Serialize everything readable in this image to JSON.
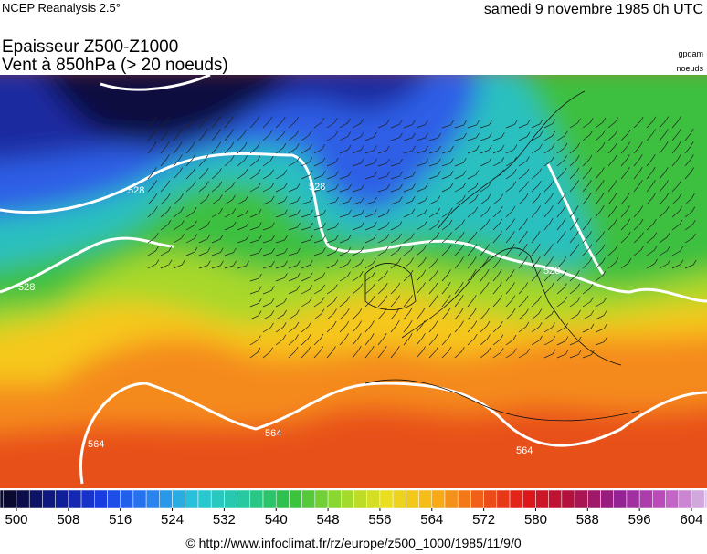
{
  "header": {
    "source": "NCEP Reanalysis 2.5°",
    "date": "samedi 9 novembre 1985 0h UTC",
    "title": "Epaisseur Z500-Z1000",
    "subtitle": "Vent à 850hPa (> 20 noeuds)",
    "unit_field": "gpdam",
    "unit_wind": "noeuds"
  },
  "contour_labels": [
    "528",
    "528",
    "528",
    "528",
    "564",
    "564",
    "564"
  ],
  "colorbar": {
    "ticks": [
      500,
      508,
      516,
      524,
      532,
      540,
      548,
      556,
      564,
      572,
      580,
      588,
      596,
      604
    ]
  },
  "footer": "© http://www.infoclimat.fr/rz/europe/z500_1000/1985/11/9/0"
}
